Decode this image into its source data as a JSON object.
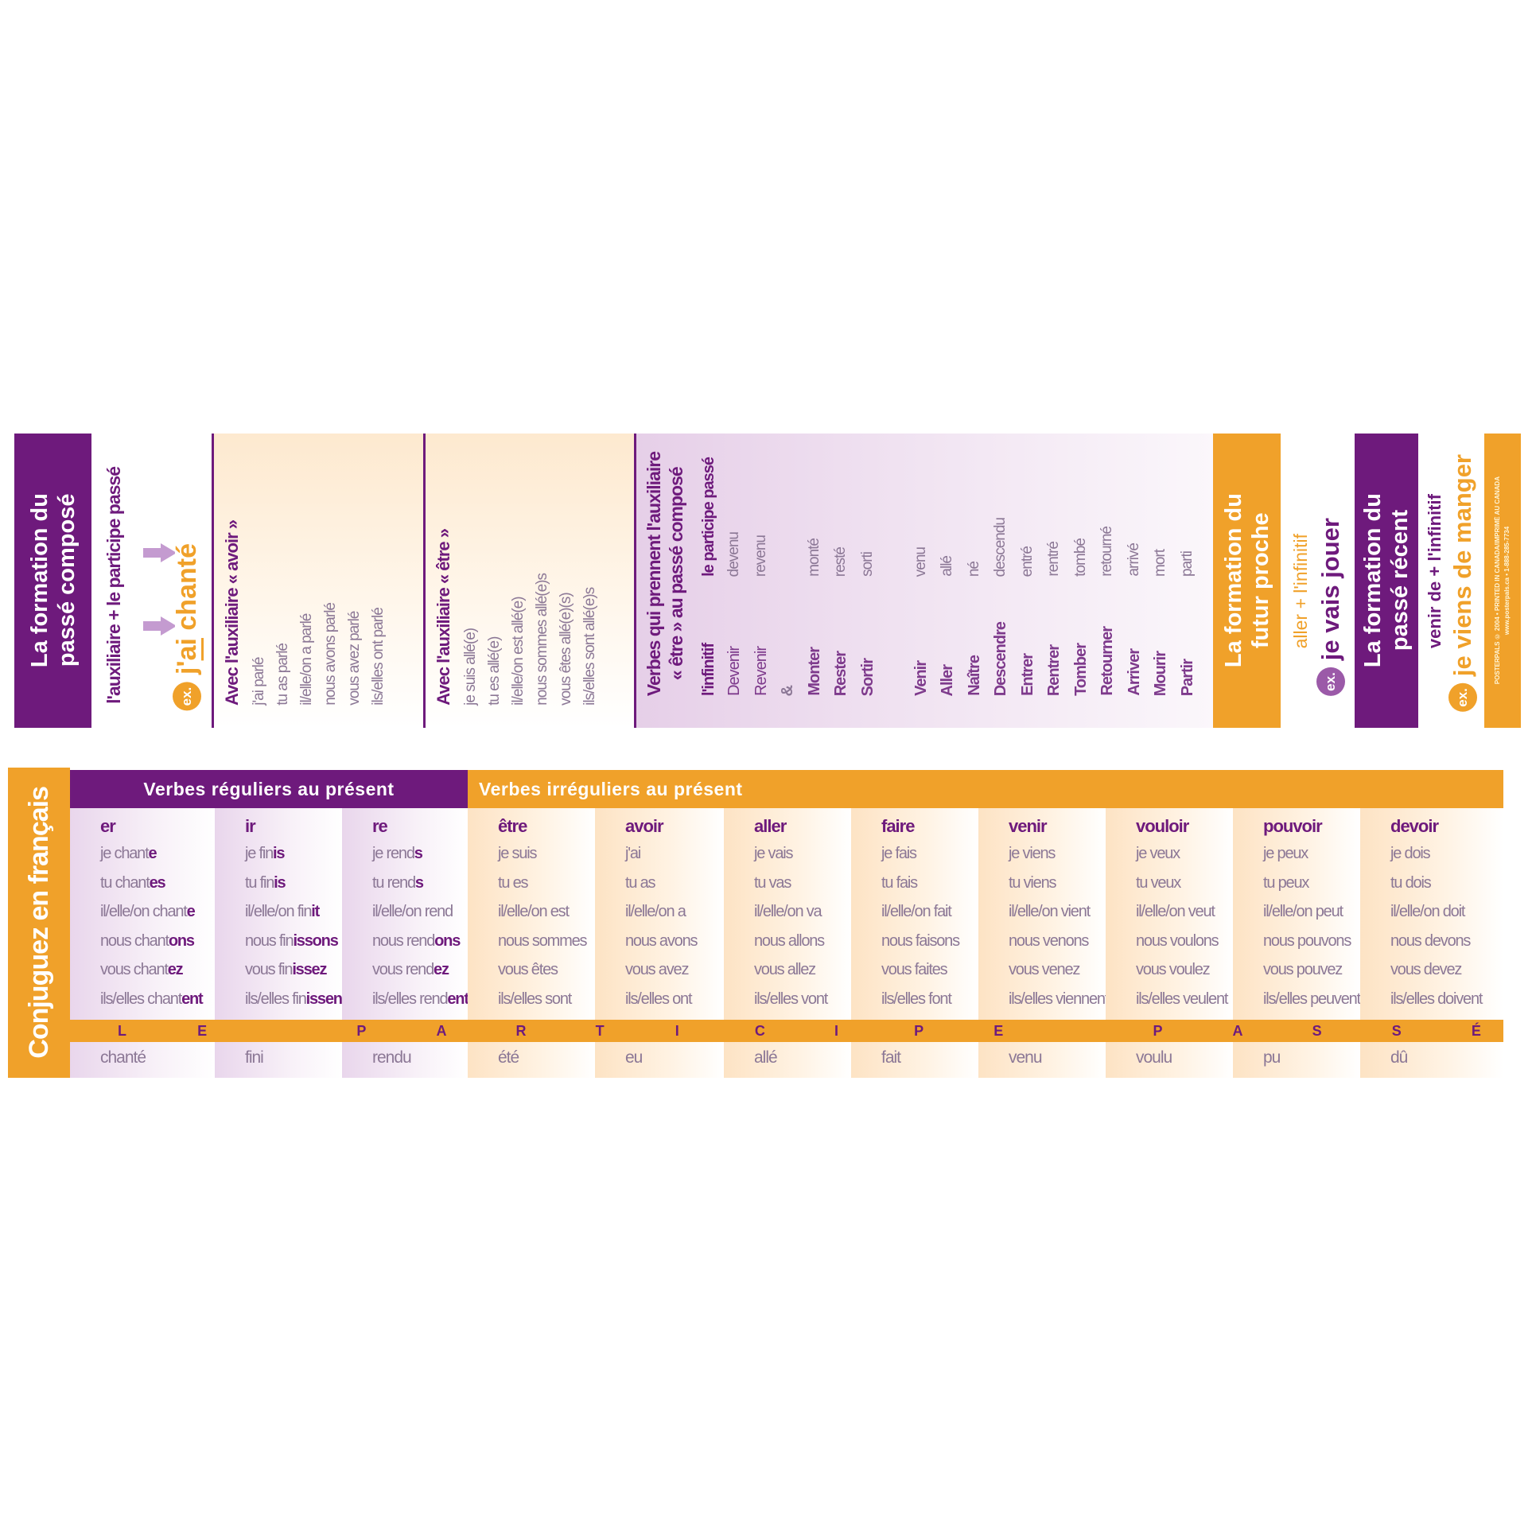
{
  "passe_compose": {
    "title_line1": "La formation du",
    "title_line2": "passé composé",
    "formula": "l'auxiliaire + le participe passé",
    "ex_label": "ex.",
    "example_pre": "j'",
    "example_aux": "ai",
    "example_post": " chanté"
  },
  "avoir_box": {
    "title": "Avec l'auxiliaire « avoir »",
    "lines": [
      "j'ai parlé",
      "tu as parlé",
      "il/elle/on a parlé",
      "nous avons parlé",
      "vous avez parlé",
      "ils/elles ont parlé"
    ]
  },
  "etre_box": {
    "title": "Avec l'auxiliaire « être »",
    "lines": [
      "je suis allé(e)",
      "tu es allé(e)",
      "il/elle/on est allé(e)",
      "nous sommes allé(e)s",
      "vous êtes allé(e)(s)",
      "ils/elles sont allé(e)s"
    ]
  },
  "etre_verbs": {
    "title_line1": "Verbes qui prennent l'auxiliaire",
    "title_line2": "« être » au passé composé",
    "col_infinitive": "l'infinitif",
    "col_participle": "le participe passé",
    "rows": [
      {
        "inf": "Devenir",
        "pp": "devenu"
      },
      {
        "inf": "Revenir",
        "pp": "revenu"
      },
      {
        "inf": "&",
        "pp": ""
      },
      {
        "inf": "Monter",
        "pp": "monté"
      },
      {
        "inf": "Rester",
        "pp": "resté"
      },
      {
        "inf": "Sortir",
        "pp": "sorti"
      },
      {
        "inf": "",
        "pp": ""
      },
      {
        "inf": "Venir",
        "pp": "venu"
      },
      {
        "inf": "Aller",
        "pp": "allé"
      },
      {
        "inf": "Naître",
        "pp": "né"
      },
      {
        "inf": "Descendre",
        "pp": "descendu"
      },
      {
        "inf": "Entrer",
        "pp": "entré"
      },
      {
        "inf": "Rentrer",
        "pp": "rentré"
      },
      {
        "inf": "Tomber",
        "pp": "tombé"
      },
      {
        "inf": "Retourner",
        "pp": "retourné"
      },
      {
        "inf": "Arriver",
        "pp": "arrivé"
      },
      {
        "inf": "Mourir",
        "pp": "mort"
      },
      {
        "inf": "Partir",
        "pp": "parti"
      }
    ]
  },
  "futur_proche": {
    "title_line1": "La formation du",
    "title_line2": "futur proche",
    "formula_a": "aller",
    "plus": "+",
    "formula_b": "l'infinitif",
    "ex_label": "ex.",
    "example": "je vais jouer"
  },
  "passe_recent": {
    "title_line1": "La formation du",
    "title_line2": "passé récent",
    "formula": "venir de + l'infinitif",
    "ex_label": "ex.",
    "example": "je viens de manger"
  },
  "footer": {
    "line1": "POSTERPALS © 2004 • PRINTED IN CANADA/IMPRIMÉ AU CANADA",
    "line2": "www.posterpals.ca • 1-888-285-7734"
  },
  "table": {
    "side_title": "Conjuguez en français",
    "regular_header": "Verbes réguliers au présent",
    "irregular_header": "Verbes irréguliers au présent",
    "participle_band": "LE PARTICIPE PASSÉ",
    "columns": [
      {
        "verb": "er",
        "regular": true,
        "lines": [
          [
            "je chant",
            "e"
          ],
          [
            "tu chant",
            "es"
          ],
          [
            "il/elle/on chant",
            "e"
          ],
          [
            "nous chant",
            "ons"
          ],
          [
            "vous chant",
            "ez"
          ],
          [
            "ils/elles chant",
            "ent"
          ]
        ],
        "pp": "chanté"
      },
      {
        "verb": "ir",
        "regular": true,
        "lines": [
          [
            "je fin",
            "is"
          ],
          [
            "tu fin",
            "is"
          ],
          [
            "il/elle/on fin",
            "it"
          ],
          [
            "nous fin",
            "issons"
          ],
          [
            "vous fin",
            "issez"
          ],
          [
            "ils/elles fin",
            "issent"
          ]
        ],
        "pp": "fini"
      },
      {
        "verb": "re",
        "regular": true,
        "lines": [
          [
            "je rend",
            "s"
          ],
          [
            "tu rend",
            "s"
          ],
          [
            "il/elle/on rend",
            ""
          ],
          [
            "nous rend",
            "ons"
          ],
          [
            "vous rend",
            "ez"
          ],
          [
            "ils/elles rend",
            "ent"
          ]
        ],
        "pp": "rendu"
      },
      {
        "verb": "être",
        "regular": false,
        "lines": [
          [
            "je suis",
            ""
          ],
          [
            "tu es",
            ""
          ],
          [
            "il/elle/on est",
            ""
          ],
          [
            "nous sommes",
            ""
          ],
          [
            "vous êtes",
            ""
          ],
          [
            "ils/elles sont",
            ""
          ]
        ],
        "pp": "été"
      },
      {
        "verb": "avoir",
        "regular": false,
        "lines": [
          [
            "j'ai",
            ""
          ],
          [
            "tu as",
            ""
          ],
          [
            "il/elle/on a",
            ""
          ],
          [
            "nous avons",
            ""
          ],
          [
            "vous avez",
            ""
          ],
          [
            "ils/elles ont",
            ""
          ]
        ],
        "pp": "eu"
      },
      {
        "verb": "aller",
        "regular": false,
        "lines": [
          [
            "je vais",
            ""
          ],
          [
            "tu vas",
            ""
          ],
          [
            "il/elle/on va",
            ""
          ],
          [
            "nous allons",
            ""
          ],
          [
            "vous allez",
            ""
          ],
          [
            "ils/elles vont",
            ""
          ]
        ],
        "pp": "allé"
      },
      {
        "verb": "faire",
        "regular": false,
        "lines": [
          [
            "je fais",
            ""
          ],
          [
            "tu fais",
            ""
          ],
          [
            "il/elle/on fait",
            ""
          ],
          [
            "nous faisons",
            ""
          ],
          [
            "vous faites",
            ""
          ],
          [
            "ils/elles font",
            ""
          ]
        ],
        "pp": "fait"
      },
      {
        "verb": "venir",
        "regular": false,
        "lines": [
          [
            "je viens",
            ""
          ],
          [
            "tu viens",
            ""
          ],
          [
            "il/elle/on vient",
            ""
          ],
          [
            "nous venons",
            ""
          ],
          [
            "vous venez",
            ""
          ],
          [
            "ils/elles viennent",
            ""
          ]
        ],
        "pp": "venu"
      },
      {
        "verb": "vouloir",
        "regular": false,
        "lines": [
          [
            "je veux",
            ""
          ],
          [
            "tu veux",
            ""
          ],
          [
            "il/elle/on veut",
            ""
          ],
          [
            "nous voulons",
            ""
          ],
          [
            "vous voulez",
            ""
          ],
          [
            "ils/elles veulent",
            ""
          ]
        ],
        "pp": "voulu"
      },
      {
        "verb": "pouvoir",
        "regular": false,
        "lines": [
          [
            "je peux",
            ""
          ],
          [
            "tu peux",
            ""
          ],
          [
            "il/elle/on peut",
            ""
          ],
          [
            "nous pouvons",
            ""
          ],
          [
            "vous pouvez",
            ""
          ],
          [
            "ils/elles peuvent",
            ""
          ]
        ],
        "pp": "pu"
      },
      {
        "verb": "devoir",
        "regular": false,
        "lines": [
          [
            "je dois",
            ""
          ],
          [
            "tu dois",
            ""
          ],
          [
            "il/elle/on doit",
            ""
          ],
          [
            "nous devons",
            ""
          ],
          [
            "vous devez",
            ""
          ],
          [
            "ils/elles doivent",
            ""
          ]
        ],
        "pp": "dû"
      }
    ]
  },
  "colors": {
    "purple": "#6e1a7c",
    "orange": "#f0a12a",
    "grey_text": "#8c7896"
  }
}
